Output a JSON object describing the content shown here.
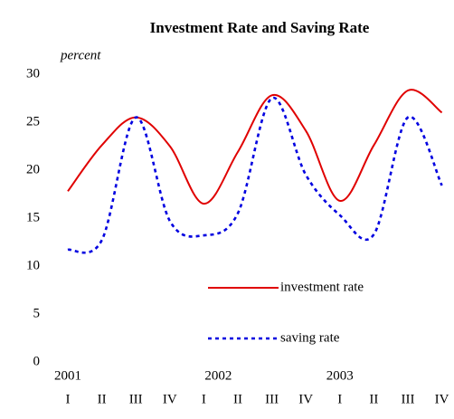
{
  "chart_data": {
    "type": "line",
    "title": "Investment Rate and Saving Rate",
    "subtitle": "percent",
    "categories": [
      "I",
      "II",
      "III",
      "IV",
      "I",
      "II",
      "III",
      "IV",
      "I",
      "II",
      "III",
      "IV"
    ],
    "year_labels": [
      "2001",
      "2002",
      "2003"
    ],
    "series": [
      {
        "name": "investment rate",
        "color": "#e00000",
        "dash": false,
        "values": [
          17.8,
          22.6,
          25.5,
          22.5,
          16.5,
          21.9,
          27.8,
          24.1,
          16.8,
          22.6,
          28.3,
          26.0
        ]
      },
      {
        "name": "saving rate",
        "color": "#0000e0",
        "dash": true,
        "values": [
          11.7,
          12.7,
          25.5,
          14.7,
          13.2,
          15.5,
          27.5,
          19.5,
          15.3,
          13.3,
          25.5,
          18.4
        ]
      }
    ],
    "ylim": [
      0,
      30
    ],
    "yticks": [
      0,
      5,
      10,
      15,
      20,
      25,
      30
    ]
  }
}
